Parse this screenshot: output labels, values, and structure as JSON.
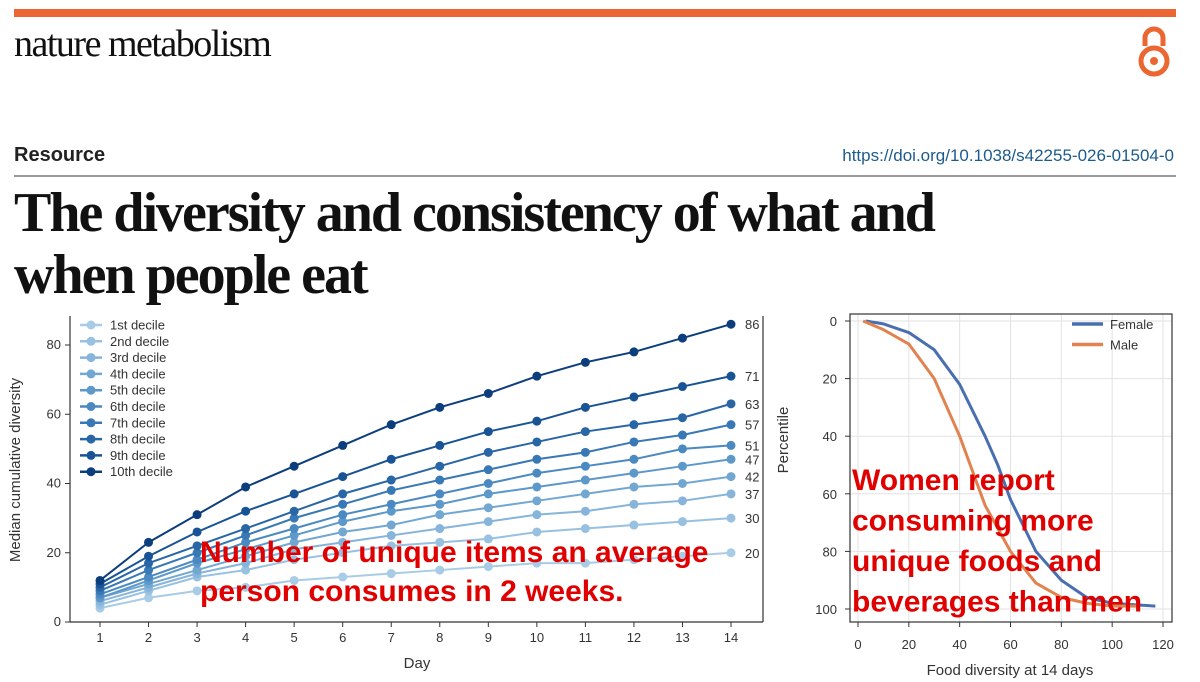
{
  "header": {
    "journal": "nature metabolism",
    "open_access_icon": "open-access-icon",
    "article_type": "Resource",
    "doi": "https://doi.org/10.1038/s42255-026-01504-0",
    "title_line1": "The diversity and consistency of what and",
    "title_line2": "when people eat",
    "accent_color": "#ec6631"
  },
  "chart_data": [
    {
      "type": "line",
      "xlabel": "Day",
      "ylabel": "Median cumulative diversity",
      "x": [
        1,
        2,
        3,
        4,
        5,
        6,
        7,
        8,
        9,
        10,
        11,
        12,
        13,
        14
      ],
      "xticks": [
        "1",
        "2",
        "3",
        "4",
        "5",
        "6",
        "7",
        "8",
        "9",
        "10",
        "11",
        "12",
        "13",
        "14"
      ],
      "yticks": [
        "0",
        "20",
        "40",
        "60",
        "80"
      ],
      "ylim": [
        0,
        88
      ],
      "legend": "top-left",
      "grid": false,
      "series": [
        {
          "name": "1st decile",
          "color": "#a8cbe6",
          "end_label": "20",
          "values": [
            4,
            7,
            9,
            10,
            12,
            13,
            14,
            15,
            16,
            17,
            17,
            18,
            19,
            20
          ]
        },
        {
          "name": "2nd decile",
          "color": "#98c0e0",
          "end_label": "30",
          "values": [
            5,
            9,
            13,
            15,
            18,
            20,
            22,
            23,
            24,
            26,
            27,
            28,
            29,
            30
          ]
        },
        {
          "name": "3rd decile",
          "color": "#86b4da",
          "end_label": "37",
          "values": [
            6,
            10,
            14,
            17,
            21,
            23,
            25,
            27,
            29,
            31,
            32,
            34,
            35,
            37
          ]
        },
        {
          "name": "4th decile",
          "color": "#72a7d2",
          "end_label": "42",
          "values": [
            7,
            11,
            15,
            19,
            23,
            26,
            28,
            31,
            33,
            35,
            37,
            39,
            40,
            42
          ]
        },
        {
          "name": "5th decile",
          "color": "#5d98ca",
          "end_label": "47",
          "values": [
            7,
            12,
            17,
            21,
            25,
            29,
            32,
            34,
            37,
            39,
            41,
            43,
            45,
            47
          ]
        },
        {
          "name": "6th decile",
          "color": "#4a89c1",
          "end_label": "51",
          "values": [
            8,
            13,
            18,
            23,
            27,
            31,
            34,
            37,
            40,
            43,
            45,
            47,
            50,
            51
          ]
        },
        {
          "name": "7th decile",
          "color": "#3878b5",
          "end_label": "57",
          "values": [
            9,
            15,
            20,
            25,
            30,
            34,
            38,
            41,
            44,
            47,
            49,
            52,
            54,
            57
          ]
        },
        {
          "name": "8th decile",
          "color": "#2866a6",
          "end_label": "63",
          "values": [
            10,
            17,
            22,
            27,
            32,
            37,
            41,
            45,
            49,
            52,
            55,
            57,
            59,
            63
          ]
        },
        {
          "name": "9th decile",
          "color": "#185495",
          "end_label": "71",
          "values": [
            11,
            19,
            26,
            32,
            37,
            42,
            47,
            51,
            55,
            58,
            62,
            65,
            68,
            71
          ]
        },
        {
          "name": "10th decile",
          "color": "#0c3d7d",
          "end_label": "86",
          "values": [
            12,
            23,
            31,
            39,
            45,
            51,
            57,
            62,
            66,
            71,
            75,
            78,
            82,
            86
          ]
        }
      ],
      "annotation_line1": "Number of unique items an average",
      "annotation_line2": "person consumes in 2 weeks."
    },
    {
      "type": "line",
      "xlabel": "Food diversity at 14 days",
      "ylabel": "Percentile",
      "xlim": [
        -5,
        125
      ],
      "ylim": [
        0,
        100
      ],
      "y_inverted": true,
      "xticks": [
        "0",
        "20",
        "40",
        "60",
        "80",
        "100",
        "120"
      ],
      "yticks": [
        "0",
        "20",
        "40",
        "60",
        "80",
        "100"
      ],
      "grid": true,
      "legend": "top-right",
      "series": [
        {
          "name": "Female",
          "color": "#4a6fb0",
          "x": [
            3,
            10,
            20,
            30,
            40,
            50,
            55,
            60,
            70,
            80,
            90,
            100,
            117
          ],
          "y": [
            0,
            1,
            4,
            10,
            22,
            40,
            50,
            62,
            80,
            90,
            96,
            98,
            99
          ]
        },
        {
          "name": "Male",
          "color": "#e0834f",
          "x": [
            2,
            10,
            20,
            30,
            40,
            45,
            50,
            60,
            70,
            80,
            90,
            100,
            110
          ],
          "y": [
            0,
            3,
            8,
            20,
            40,
            52,
            64,
            80,
            91,
            96,
            98,
            99,
            99
          ]
        }
      ],
      "annotation_lines": [
        "Women report",
        "consuming more",
        "unique foods and",
        "beverages than men"
      ]
    }
  ]
}
